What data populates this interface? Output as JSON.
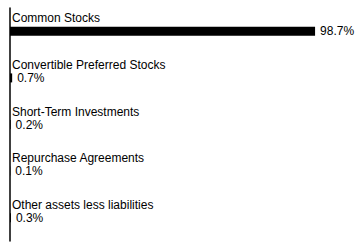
{
  "chart_data": {
    "type": "bar",
    "orientation": "horizontal",
    "categories": [
      "Common Stocks",
      "Convertible Preferred Stocks",
      "Short-Term Investments",
      "Repurchase Agreements",
      "Other assets less liabilities"
    ],
    "values": [
      98.7,
      0.7,
      0.2,
      0.1,
      0.3
    ],
    "value_labels": [
      "98.7%",
      "0.7%",
      "0.2%",
      "0.1%",
      "0.3%"
    ],
    "color": "#000000",
    "xlim": [
      0,
      110
    ],
    "grid": false,
    "tick_labels": "y",
    "data_labels": true
  }
}
